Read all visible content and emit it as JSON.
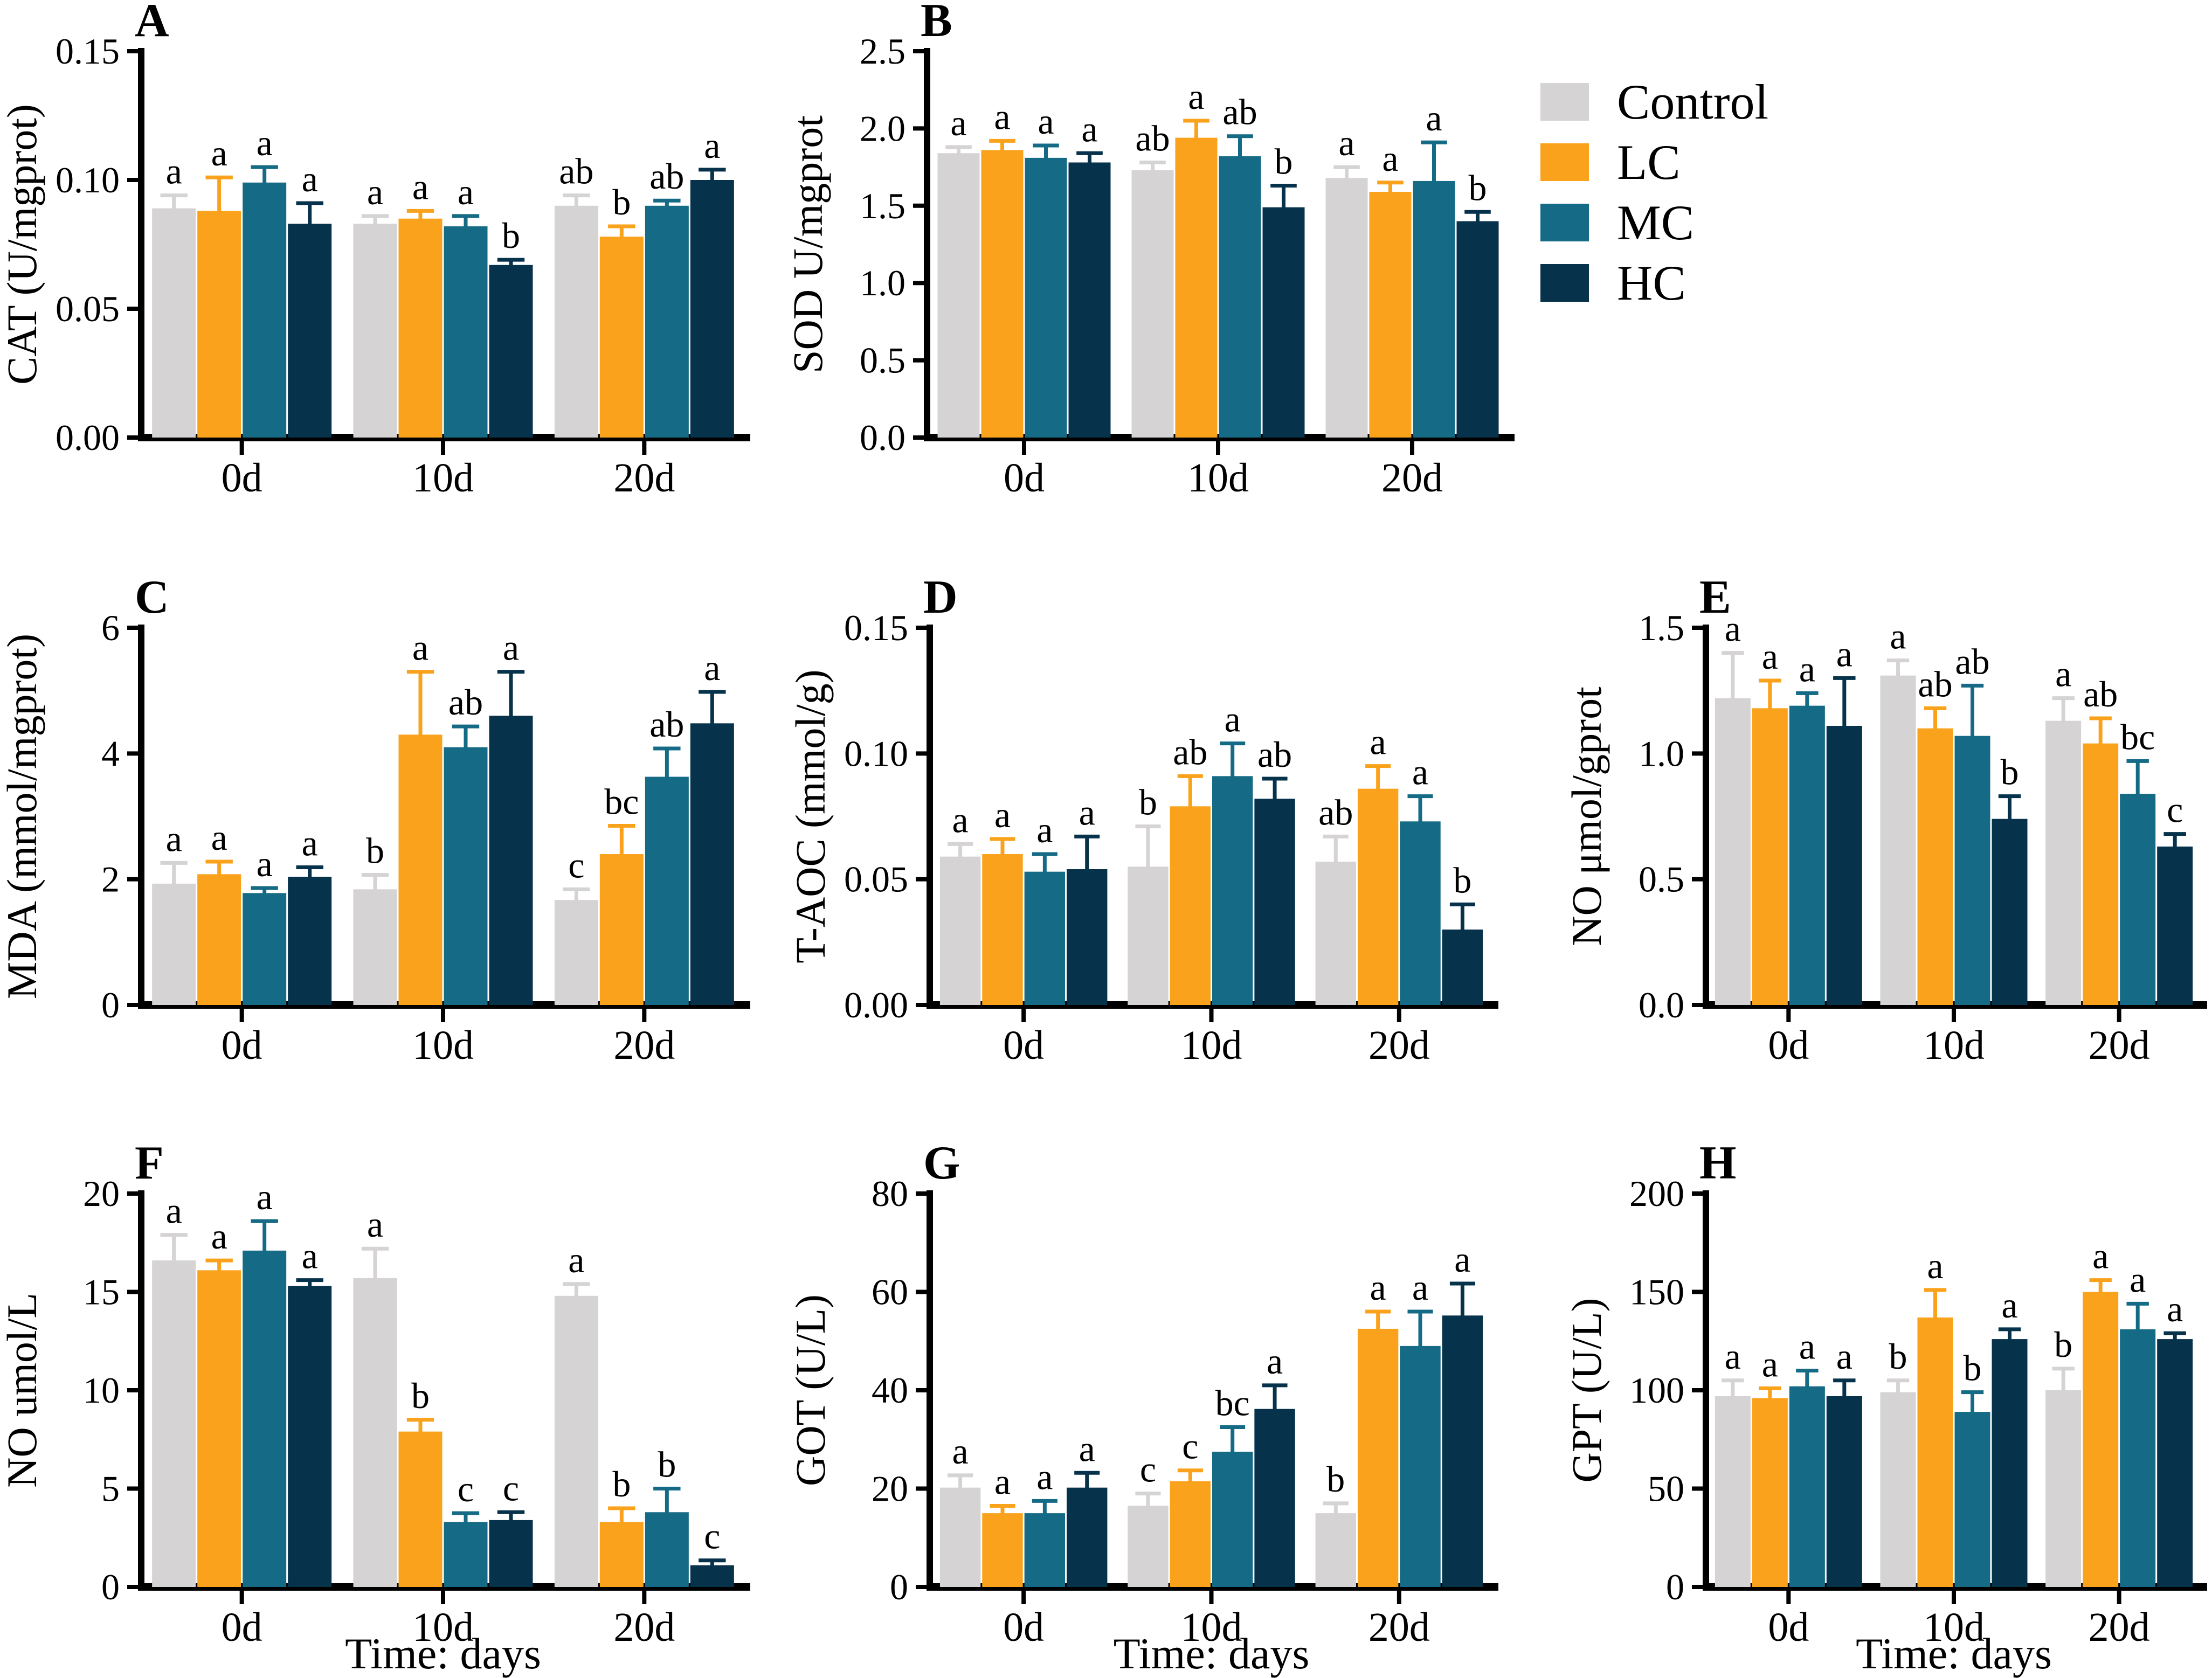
{
  "legend": {
    "items": [
      {
        "label": "Control",
        "color": "#d5d3d4"
      },
      {
        "label": "LC",
        "color": "#faa21b"
      },
      {
        "label": "MC",
        "color": "#156a85"
      },
      {
        "label": "HC",
        "color": "#07324b"
      }
    ]
  },
  "x_axis_title": "Time: days",
  "chart_data": [
    {
      "id": "A",
      "type": "bar",
      "ylabel": "CAT (U/mgprot)",
      "ylim": [
        0,
        0.15
      ],
      "ytick_values": [
        0,
        0.05,
        0.1,
        0.15
      ],
      "yticks": [
        "0.00",
        "0.05",
        "0.10",
        "0.15"
      ],
      "categories": [
        "0d",
        "10d",
        "20d"
      ],
      "xtitle": "",
      "series": [
        {
          "name": "Control",
          "values": [
            0.089,
            0.083,
            0.09
          ],
          "errors": [
            0.005,
            0.003,
            0.004
          ]
        },
        {
          "name": "LC",
          "values": [
            0.088,
            0.085,
            0.078
          ],
          "errors": [
            0.013,
            0.003,
            0.004
          ]
        },
        {
          "name": "MC",
          "values": [
            0.099,
            0.082,
            0.09
          ],
          "errors": [
            0.006,
            0.004,
            0.002
          ]
        },
        {
          "name": "HC",
          "values": [
            0.083,
            0.067,
            0.1
          ],
          "errors": [
            0.008,
            0.002,
            0.004
          ]
        }
      ],
      "sig_letters": [
        [
          "a",
          "a",
          "a",
          "a"
        ],
        [
          "a",
          "a",
          "a",
          "b"
        ],
        [
          "ab",
          "b",
          "ab",
          "a"
        ]
      ]
    },
    {
      "id": "B",
      "type": "bar",
      "ylabel": "SOD U/mgprot",
      "ylim": [
        0,
        2.5
      ],
      "ytick_values": [
        0,
        0.5,
        1.0,
        1.5,
        2.0,
        2.5
      ],
      "yticks": [
        "0.0",
        "0.5",
        "1.0",
        "1.5",
        "2.0",
        "2.5"
      ],
      "categories": [
        "0d",
        "10d",
        "20d"
      ],
      "xtitle": "",
      "series": [
        {
          "name": "Control",
          "values": [
            1.84,
            1.73,
            1.68
          ],
          "errors": [
            0.04,
            0.05,
            0.07
          ]
        },
        {
          "name": "LC",
          "values": [
            1.86,
            1.94,
            1.59
          ],
          "errors": [
            0.06,
            0.11,
            0.06
          ]
        },
        {
          "name": "MC",
          "values": [
            1.81,
            1.82,
            1.66
          ],
          "errors": [
            0.08,
            0.13,
            0.25
          ]
        },
        {
          "name": "HC",
          "values": [
            1.78,
            1.49,
            1.4
          ],
          "errors": [
            0.06,
            0.14,
            0.06
          ]
        }
      ],
      "sig_letters": [
        [
          "a",
          "a",
          "a",
          "a"
        ],
        [
          "ab",
          "a",
          "ab",
          "b"
        ],
        [
          "a",
          "a",
          "a",
          "b"
        ]
      ]
    },
    {
      "id": "C",
      "type": "bar",
      "ylabel": "MDA (mmol/mgprot)",
      "ylim": [
        0,
        6
      ],
      "ytick_values": [
        0,
        2,
        4,
        6
      ],
      "yticks": [
        "0",
        "2",
        "4",
        "6"
      ],
      "categories": [
        "0d",
        "10d",
        "20d"
      ],
      "xtitle": "",
      "series": [
        {
          "name": "Control",
          "values": [
            1.93,
            1.84,
            1.67
          ],
          "errors": [
            0.33,
            0.23,
            0.17
          ]
        },
        {
          "name": "LC",
          "values": [
            2.08,
            4.3,
            2.4
          ],
          "errors": [
            0.2,
            1.0,
            0.45
          ]
        },
        {
          "name": "MC",
          "values": [
            1.78,
            4.1,
            3.63
          ],
          "errors": [
            0.08,
            0.33,
            0.45
          ]
        },
        {
          "name": "HC",
          "values": [
            2.04,
            4.6,
            4.48
          ],
          "errors": [
            0.15,
            0.7,
            0.5
          ]
        }
      ],
      "sig_letters": [
        [
          "a",
          "a",
          "a",
          "a"
        ],
        [
          "b",
          "a",
          "ab",
          "a"
        ],
        [
          "c",
          "bc",
          "ab",
          "a"
        ]
      ]
    },
    {
      "id": "D",
      "type": "bar",
      "ylabel": "T-AOC (mmol/g)",
      "ylim": [
        0,
        0.15
      ],
      "ytick_values": [
        0,
        0.05,
        0.1,
        0.15
      ],
      "yticks": [
        "0.00",
        "0.05",
        "0.10",
        "0.15"
      ],
      "categories": [
        "0d",
        "10d",
        "20d"
      ],
      "xtitle": "",
      "series": [
        {
          "name": "Control",
          "values": [
            0.059,
            0.055,
            0.057
          ],
          "errors": [
            0.005,
            0.016,
            0.01
          ]
        },
        {
          "name": "LC",
          "values": [
            0.06,
            0.079,
            0.086
          ],
          "errors": [
            0.006,
            0.012,
            0.009
          ]
        },
        {
          "name": "MC",
          "values": [
            0.053,
            0.091,
            0.073
          ],
          "errors": [
            0.007,
            0.013,
            0.01
          ]
        },
        {
          "name": "HC",
          "values": [
            0.054,
            0.082,
            0.03
          ],
          "errors": [
            0.013,
            0.008,
            0.01
          ]
        }
      ],
      "sig_letters": [
        [
          "a",
          "a",
          "a",
          "a"
        ],
        [
          "b",
          "ab",
          "a",
          "ab"
        ],
        [
          "ab",
          "a",
          "a",
          "b"
        ]
      ]
    },
    {
      "id": "E",
      "type": "bar",
      "ylabel": "NO μmol/gprot",
      "ylim": [
        0,
        1.5
      ],
      "ytick_values": [
        0,
        0.5,
        1.0,
        1.5
      ],
      "yticks": [
        "0.0",
        "0.5",
        "1.0",
        "1.5"
      ],
      "categories": [
        "0d",
        "10d",
        "20d"
      ],
      "xtitle": "",
      "series": [
        {
          "name": "Control",
          "values": [
            1.22,
            1.31,
            1.13
          ],
          "errors": [
            0.18,
            0.06,
            0.09
          ]
        },
        {
          "name": "LC",
          "values": [
            1.18,
            1.1,
            1.04
          ],
          "errors": [
            0.11,
            0.08,
            0.1
          ]
        },
        {
          "name": "MC",
          "values": [
            1.19,
            1.07,
            0.84
          ],
          "errors": [
            0.05,
            0.2,
            0.13
          ]
        },
        {
          "name": "HC",
          "values": [
            1.11,
            0.74,
            0.63
          ],
          "errors": [
            0.19,
            0.09,
            0.05
          ]
        }
      ],
      "sig_letters": [
        [
          "a",
          "a",
          "a",
          "a"
        ],
        [
          "a",
          "ab",
          "ab",
          "b"
        ],
        [
          "a",
          "ab",
          "bc",
          "c"
        ]
      ]
    },
    {
      "id": "F",
      "type": "bar",
      "ylabel": "NO umol/L",
      "ylim": [
        0,
        20
      ],
      "ytick_values": [
        0,
        5,
        10,
        15,
        20
      ],
      "yticks": [
        "0",
        "5",
        "10",
        "15",
        "20"
      ],
      "categories": [
        "0d",
        "10d",
        "20d"
      ],
      "xtitle": "Time: days",
      "series": [
        {
          "name": "Control",
          "values": [
            16.6,
            15.7,
            14.8
          ],
          "errors": [
            1.3,
            1.5,
            0.6
          ]
        },
        {
          "name": "LC",
          "values": [
            16.1,
            7.9,
            3.3
          ],
          "errors": [
            0.5,
            0.6,
            0.7
          ]
        },
        {
          "name": "MC",
          "values": [
            17.1,
            3.3,
            3.8
          ],
          "errors": [
            1.5,
            0.45,
            1.2
          ]
        },
        {
          "name": "HC",
          "values": [
            15.3,
            3.4,
            1.1
          ],
          "errors": [
            0.3,
            0.4,
            0.25
          ]
        }
      ],
      "sig_letters": [
        [
          "a",
          "a",
          "a",
          "a"
        ],
        [
          "a",
          "b",
          "c",
          "c"
        ],
        [
          "a",
          "b",
          "b",
          "c"
        ]
      ]
    },
    {
      "id": "G",
      "type": "bar",
      "ylabel": "GOT (U/L)",
      "ylim": [
        0,
        80
      ],
      "ytick_values": [
        0,
        20,
        40,
        60,
        80
      ],
      "yticks": [
        "0",
        "20",
        "40",
        "60",
        "80"
      ],
      "categories": [
        "0d",
        "10d",
        "20d"
      ],
      "xtitle": "Time: days",
      "series": [
        {
          "name": "Control",
          "values": [
            20.2,
            16.5,
            15.0
          ],
          "errors": [
            2.5,
            2.5,
            2.0
          ]
        },
        {
          "name": "LC",
          "values": [
            15.0,
            21.5,
            52.5
          ],
          "errors": [
            1.5,
            2.2,
            3.5
          ]
        },
        {
          "name": "MC",
          "values": [
            15.0,
            27.5,
            49.0
          ],
          "errors": [
            2.5,
            5.0,
            7.0
          ]
        },
        {
          "name": "HC",
          "values": [
            20.2,
            36.2,
            55.2
          ],
          "errors": [
            3.0,
            4.8,
            6.5
          ]
        }
      ],
      "sig_letters": [
        [
          "a",
          "a",
          "a",
          "a"
        ],
        [
          "c",
          "c",
          "bc",
          "a"
        ],
        [
          "b",
          "a",
          "a",
          "a"
        ]
      ]
    },
    {
      "id": "H",
      "type": "bar",
      "ylabel": "GPT (U/L)",
      "ylim": [
        0,
        200
      ],
      "ytick_values": [
        0,
        50,
        100,
        150,
        200
      ],
      "yticks": [
        "0",
        "50",
        "100",
        "150",
        "200"
      ],
      "categories": [
        "0d",
        "10d",
        "20d"
      ],
      "xtitle": "Time: days",
      "series": [
        {
          "name": "Control",
          "values": [
            97,
            99,
            100
          ],
          "errors": [
            8,
            6,
            11
          ]
        },
        {
          "name": "LC",
          "values": [
            96,
            137,
            150
          ],
          "errors": [
            5,
            14,
            6
          ]
        },
        {
          "name": "MC",
          "values": [
            102,
            89,
            131
          ],
          "errors": [
            8,
            10,
            13
          ]
        },
        {
          "name": "HC",
          "values": [
            97,
            126,
            126
          ],
          "errors": [
            8,
            5,
            3
          ]
        }
      ],
      "sig_letters": [
        [
          "a",
          "a",
          "a",
          "a"
        ],
        [
          "b",
          "a",
          "b",
          "a"
        ],
        [
          "b",
          "a",
          "a",
          "a"
        ]
      ]
    }
  ]
}
